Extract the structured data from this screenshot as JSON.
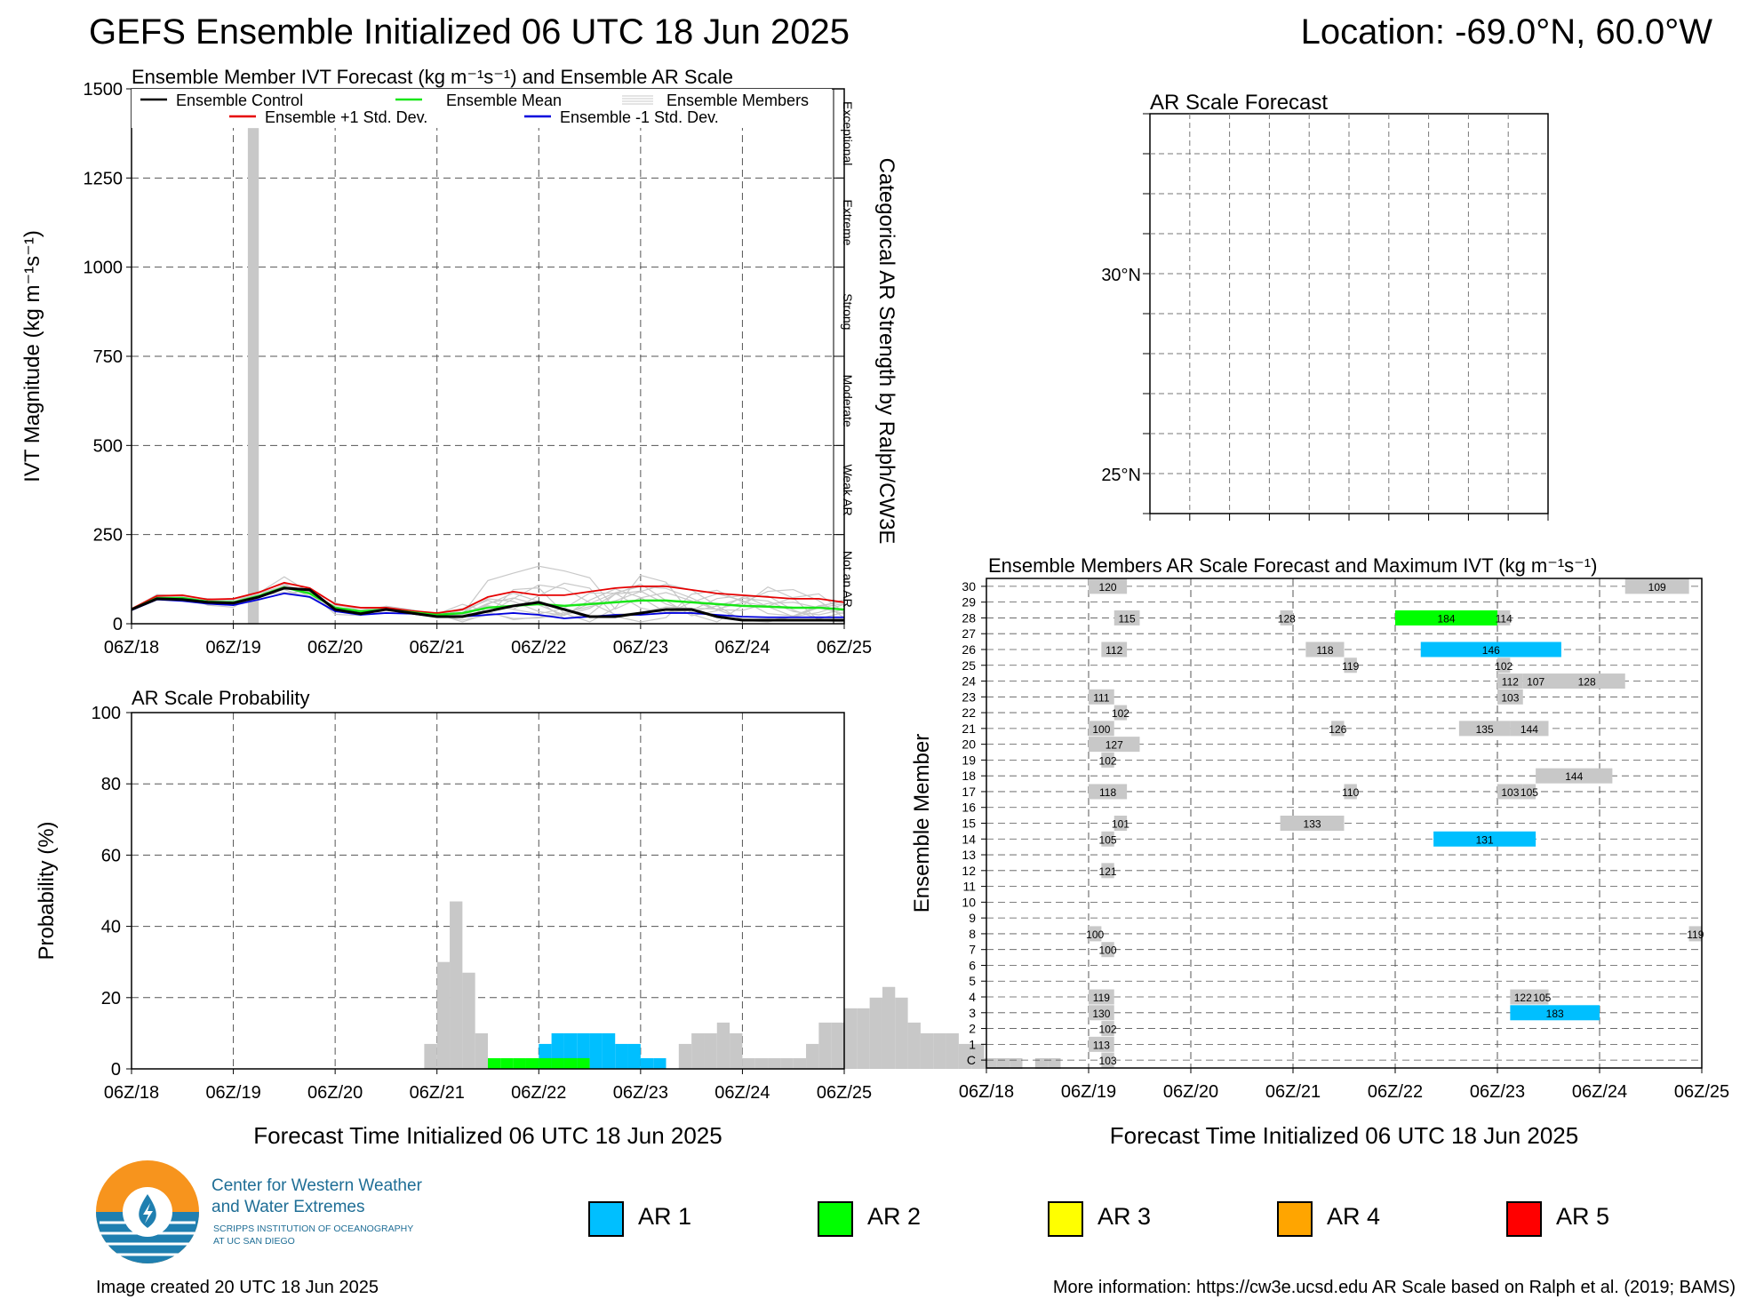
{
  "header": {
    "title": "GEFS Ensemble Initialized 06 UTC 18 Jun 2025",
    "location": "Location: -69.0°N, 60.0°W"
  },
  "colors": {
    "control": "#000000",
    "mean": "#19e619",
    "plus_std": "#e60000",
    "minus_std": "#0000dd",
    "members": "#c8c8c8",
    "ar1": "#00bfff",
    "ar2": "#00ff00",
    "ar3": "#ffff00",
    "ar4": "#ffa500",
    "ar5": "#ff0000",
    "noar": "#c8c8c8"
  },
  "x_ticks": [
    "06Z/18",
    "06Z/19",
    "06Z/20",
    "06Z/21",
    "06Z/22",
    "06Z/23",
    "06Z/24",
    "06Z/25"
  ],
  "ivt_panel": {
    "title": "Ensemble Member IVT Forecast (kg m⁻¹s⁻¹) and Ensemble AR Scale",
    "ylabel": "IVT Magnitude (kg m⁻¹s⁻¹)",
    "right_label": "Categorical AR Strength by Ralph/CW3E",
    "categories": [
      "Exceptional",
      "Extreme",
      "Strong",
      "Moderate",
      "Weak AR",
      "Not an AR"
    ],
    "legend": {
      "control": "Ensemble Control",
      "mean": "Ensemble Mean",
      "members": "Ensemble Members",
      "plus_std": "Ensemble +1 Std. Dev.",
      "minus_std": "Ensemble -1 Std. Dev."
    }
  },
  "prob_panel": {
    "title": "AR Scale Probability",
    "ylabel": "Probability (%)",
    "xlabel": "Forecast Time Initialized 06 UTC 18 Jun 2025"
  },
  "map_panel": {
    "title": "AR Scale Forecast",
    "lat_labels": [
      "30°N",
      "25°N"
    ]
  },
  "members_panel": {
    "title": "Ensemble Members AR Scale Forecast and Maximum IVT (kg m⁻¹s⁻¹)",
    "ylabel": "Ensemble Member",
    "xlabel": "Forecast Time Initialized 06 UTC 18 Jun 2025"
  },
  "legend_ar": [
    "AR 1",
    "AR 2",
    "AR 3",
    "AR 4",
    "AR 5"
  ],
  "logo": {
    "line1": "Center for Western Weather",
    "line2": "and Water Extremes",
    "line3": "SCRIPPS INSTITUTION OF OCEANOGRAPHY",
    "line4": "AT UC SAN DIEGO"
  },
  "footer": {
    "created": "Image created 20 UTC 18 Jun 2025",
    "info": "More information: https://cw3e.ucsd.edu AR Scale based on Ralph et al. (2019; BAMS)"
  },
  "chart_data": [
    {
      "type": "line",
      "title": "Ensemble Member IVT Forecast (kg m⁻¹s⁻¹) and Ensemble AR Scale",
      "ylabel": "IVT Magnitude (kg m⁻¹s⁻¹)",
      "ylim": [
        0,
        1500
      ],
      "yticks": [
        0,
        250,
        500,
        750,
        1000,
        1250,
        1500
      ],
      "x_forecast_hours": [
        0,
        6,
        12,
        18,
        24,
        30,
        36,
        42,
        48,
        54,
        60,
        66,
        72,
        78,
        84,
        90,
        96,
        102,
        108,
        114,
        120,
        126,
        132,
        138,
        144,
        150,
        156,
        162,
        168
      ],
      "series": [
        {
          "name": "Ensemble Control",
          "values": [
            40,
            70,
            68,
            60,
            58,
            75,
            100,
            95,
            40,
            28,
            40,
            30,
            20,
            20,
            35,
            50,
            60,
            40,
            20,
            20,
            30,
            40,
            40,
            20,
            10,
            10,
            10,
            10,
            10
          ]
        },
        {
          "name": "Ensemble Mean",
          "values": [
            40,
            72,
            72,
            62,
            60,
            78,
            102,
            85,
            45,
            35,
            40,
            32,
            25,
            30,
            45,
            50,
            55,
            50,
            55,
            60,
            65,
            65,
            60,
            55,
            50,
            48,
            45,
            45,
            40
          ]
        },
        {
          "name": "Ensemble +1 Std. Dev.",
          "values": [
            42,
            78,
            80,
            68,
            70,
            88,
            115,
            100,
            55,
            45,
            45,
            36,
            30,
            40,
            75,
            90,
            80,
            80,
            90,
            100,
            105,
            105,
            95,
            85,
            80,
            75,
            70,
            70,
            60
          ]
        },
        {
          "name": "Ensemble -1 Std. Dev.",
          "values": [
            38,
            68,
            64,
            56,
            52,
            68,
            85,
            75,
            35,
            25,
            30,
            28,
            20,
            20,
            25,
            30,
            25,
            15,
            20,
            25,
            25,
            30,
            30,
            25,
            20,
            18,
            18,
            18,
            18
          ]
        }
      ],
      "ar_scale_bar": {
        "x_forecast_hours": [
          27,
          30
        ],
        "category": "Not an AR"
      },
      "x_ticks": [
        "06Z/18",
        "06Z/19",
        "06Z/20",
        "06Z/21",
        "06Z/22",
        "06Z/23",
        "06Z/24",
        "06Z/25"
      ],
      "right_axis_categories": [
        "Exceptional",
        "Extreme",
        "Strong",
        "Moderate",
        "Weak AR",
        "Not an AR"
      ]
    },
    {
      "type": "bar",
      "title": "AR Scale Probability",
      "ylabel": "Probability (%)",
      "xlabel": "Forecast Time Initialized 06 UTC 18 Jun 2025",
      "ylim": [
        0,
        100
      ],
      "yticks": [
        0,
        20,
        40,
        60,
        80,
        100
      ],
      "bin_hours": 3,
      "series": [
        {
          "name": "AR 1",
          "start_hour": 84,
          "values": [
            0,
            0,
            0,
            3,
            7,
            10,
            10,
            10,
            10,
            10,
            7,
            7,
            3,
            3
          ]
        },
        {
          "name": "AR 2",
          "start_hour": 84,
          "values": [
            3,
            3,
            3,
            3,
            3,
            3,
            3,
            3
          ]
        },
        {
          "name": "Not an AR",
          "start_hour": 0,
          "values": [
            0,
            0,
            0,
            0,
            0,
            0,
            0,
            0,
            0,
            0,
            0,
            0,
            0,
            0,
            0,
            0,
            0,
            0,
            0,
            0,
            0,
            0,
            0,
            7,
            30,
            47,
            27,
            10,
            0,
            0,
            0,
            0,
            0,
            0,
            0,
            0,
            0,
            0,
            0,
            0,
            0,
            0,
            0,
            7,
            10,
            10,
            13,
            10,
            3,
            3,
            3,
            3,
            3,
            7,
            13,
            13,
            17,
            17,
            20,
            23,
            20,
            13,
            10,
            10,
            10,
            7,
            7,
            3,
            3,
            3,
            0,
            3,
            3
          ]
        }
      ]
    },
    {
      "type": "heatmap",
      "title": "Ensemble Members AR Scale Forecast and Maximum IVT (kg m⁻¹s⁻¹)",
      "ylabel": "Ensemble Member",
      "xlabel": "Forecast Time Initialized 06 UTC 18 Jun 2025",
      "members": [
        "C",
        "1",
        "2",
        "3",
        "4",
        "5",
        "6",
        "7",
        "8",
        "9",
        "10",
        "11",
        "12",
        "13",
        "14",
        "15",
        "16",
        "17",
        "18",
        "19",
        "20",
        "21",
        "22",
        "23",
        "24",
        "25",
        "26",
        "27",
        "28",
        "29",
        "30"
      ],
      "events": [
        {
          "member": "C",
          "start": 27,
          "end": 30,
          "ar": 0,
          "max_ivt": 103
        },
        {
          "member": "1",
          "start": 24,
          "end": 30,
          "ar": 0,
          "max_ivt": 113
        },
        {
          "member": "2",
          "start": 27,
          "end": 30,
          "ar": 0,
          "max_ivt": 102
        },
        {
          "member": "3",
          "start": 24,
          "end": 30,
          "ar": 0,
          "max_ivt": 130
        },
        {
          "member": "3",
          "start": 123,
          "end": 144,
          "ar": 1,
          "max_ivt": 183
        },
        {
          "member": "4",
          "start": 24,
          "end": 30,
          "ar": 0,
          "max_ivt": 119
        },
        {
          "member": "4",
          "start": 123,
          "end": 129,
          "ar": 0,
          "max_ivt": 122
        },
        {
          "member": "4",
          "start": 129,
          "end": 132,
          "ar": 0,
          "max_ivt": 105
        },
        {
          "member": "7",
          "start": 27,
          "end": 30,
          "ar": 0,
          "max_ivt": 100
        },
        {
          "member": "8",
          "start": 24,
          "end": 27,
          "ar": 0,
          "max_ivt": 100
        },
        {
          "member": "8",
          "start": 165,
          "end": 168,
          "ar": 0,
          "max_ivt": 119
        },
        {
          "member": "12",
          "start": 27,
          "end": 30,
          "ar": 0,
          "max_ivt": 121
        },
        {
          "member": "14",
          "start": 27,
          "end": 30,
          "ar": 0,
          "max_ivt": 105
        },
        {
          "member": "14",
          "start": 105,
          "end": 129,
          "ar": 1,
          "max_ivt": 131
        },
        {
          "member": "15",
          "start": 30,
          "end": 33,
          "ar": 0,
          "max_ivt": 101
        },
        {
          "member": "15",
          "start": 69,
          "end": 84,
          "ar": 0,
          "max_ivt": 133
        },
        {
          "member": "17",
          "start": 24,
          "end": 33,
          "ar": 0,
          "max_ivt": 118
        },
        {
          "member": "17",
          "start": 84,
          "end": 87,
          "ar": 0,
          "max_ivt": 110
        },
        {
          "member": "17",
          "start": 120,
          "end": 126,
          "ar": 0,
          "max_ivt": 103
        },
        {
          "member": "17",
          "start": 126,
          "end": 129,
          "ar": 0,
          "max_ivt": 105
        },
        {
          "member": "18",
          "start": 129,
          "end": 147,
          "ar": 0,
          "max_ivt": 144
        },
        {
          "member": "19",
          "start": 27,
          "end": 30,
          "ar": 0,
          "max_ivt": 102
        },
        {
          "member": "20",
          "start": 24,
          "end": 36,
          "ar": 0,
          "max_ivt": 127
        },
        {
          "member": "21",
          "start": 24,
          "end": 30,
          "ar": 0,
          "max_ivt": 100
        },
        {
          "member": "21",
          "start": 81,
          "end": 84,
          "ar": 0,
          "max_ivt": 126
        },
        {
          "member": "21",
          "start": 111,
          "end": 123,
          "ar": 0,
          "max_ivt": 135
        },
        {
          "member": "21",
          "start": 123,
          "end": 132,
          "ar": 0,
          "max_ivt": 144
        },
        {
          "member": "22",
          "start": 30,
          "end": 33,
          "ar": 0,
          "max_ivt": 102
        },
        {
          "member": "23",
          "start": 24,
          "end": 30,
          "ar": 0,
          "max_ivt": 111
        },
        {
          "member": "23",
          "start": 120,
          "end": 126,
          "ar": 0,
          "max_ivt": 103
        },
        {
          "member": "24",
          "start": 120,
          "end": 126,
          "ar": 0,
          "max_ivt": 112
        },
        {
          "member": "24",
          "start": 126,
          "end": 132,
          "ar": 0,
          "max_ivt": 107
        },
        {
          "member": "24",
          "start": 132,
          "end": 150,
          "ar": 0,
          "max_ivt": 128
        },
        {
          "member": "25",
          "start": 84,
          "end": 87,
          "ar": 0,
          "max_ivt": 119
        },
        {
          "member": "25",
          "start": 120,
          "end": 123,
          "ar": 0,
          "max_ivt": 102
        },
        {
          "member": "26",
          "start": 27,
          "end": 33,
          "ar": 0,
          "max_ivt": 112
        },
        {
          "member": "26",
          "start": 75,
          "end": 84,
          "ar": 0,
          "max_ivt": 118
        },
        {
          "member": "26",
          "start": 102,
          "end": 135,
          "ar": 1,
          "max_ivt": 146
        },
        {
          "member": "28",
          "start": 30,
          "end": 36,
          "ar": 0,
          "max_ivt": 115
        },
        {
          "member": "28",
          "start": 69,
          "end": 72,
          "ar": 0,
          "max_ivt": 128
        },
        {
          "member": "28",
          "start": 96,
          "end": 120,
          "ar": 2,
          "max_ivt": 184
        },
        {
          "member": "28",
          "start": 120,
          "end": 123,
          "ar": 0,
          "max_ivt": 114
        },
        {
          "member": "30",
          "start": 24,
          "end": 33,
          "ar": 0,
          "max_ivt": 120
        },
        {
          "member": "30",
          "start": 150,
          "end": 165,
          "ar": 0,
          "max_ivt": 109
        }
      ]
    }
  ]
}
